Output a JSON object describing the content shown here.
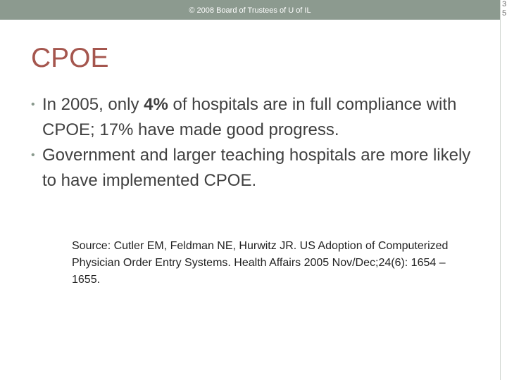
{
  "header": {
    "copyright": "© 2008 Board of Trustees of U of IL",
    "edge_glyphs": "3\n5"
  },
  "slide": {
    "title": "CPOE",
    "bullet_marker": "•",
    "bullets": [
      {
        "prefix": "In 2005, only ",
        "emphasis": "4%",
        "suffix": " of hospitals are in full compliance with CPOE; 17% have made good progress."
      },
      {
        "text": "Government and larger teaching hospitals are more likely to have implemented CPOE."
      }
    ],
    "source": "Source:  Cutler EM, Feldman NE, Hurwitz JR.  US Adoption of Computerized Physician Order Entry Systems.  Health Affairs 2005 Nov/Dec;24(6): 1654 – 1655."
  },
  "colors": {
    "top_bar": "#8c9a8f",
    "title": "#a5564e",
    "body_text": "#404040",
    "bullet_marker": "#8a9a8e"
  }
}
